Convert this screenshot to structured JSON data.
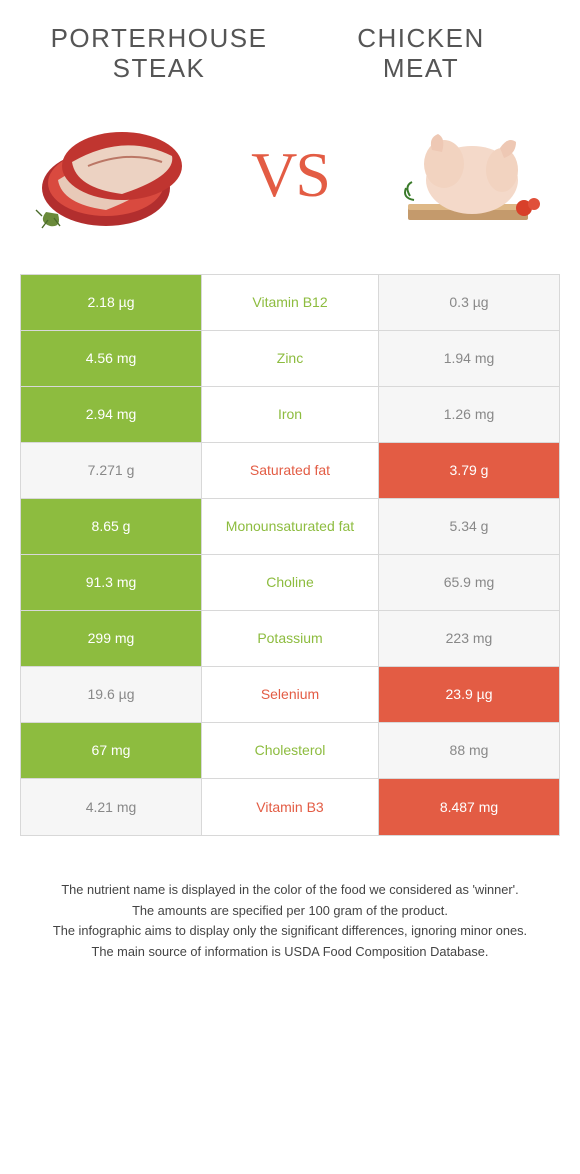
{
  "header": {
    "left_title_line1": "PORTERHOUSE",
    "left_title_line2": "STEAK",
    "right_title_line1": "CHICKEN",
    "right_title_line2": "MEAT",
    "vs": "VS"
  },
  "colors": {
    "left_winner": "#8dbc3f",
    "right_winner": "#e35c44",
    "loser_cell": "#f6f6f6",
    "loser_text": "#888888",
    "winner_text": "#ffffff",
    "border": "#d8d8d8"
  },
  "table": {
    "rows": [
      {
        "nutrient": "Vitamin B12",
        "left": "2.18 µg",
        "right": "0.3 µg",
        "winner": "left"
      },
      {
        "nutrient": "Zinc",
        "left": "4.56 mg",
        "right": "1.94 mg",
        "winner": "left"
      },
      {
        "nutrient": "Iron",
        "left": "2.94 mg",
        "right": "1.26 mg",
        "winner": "left"
      },
      {
        "nutrient": "Saturated fat",
        "left": "7.271 g",
        "right": "3.79 g",
        "winner": "right"
      },
      {
        "nutrient": "Monounsaturated fat",
        "left": "8.65 g",
        "right": "5.34 g",
        "winner": "left"
      },
      {
        "nutrient": "Choline",
        "left": "91.3 mg",
        "right": "65.9 mg",
        "winner": "left"
      },
      {
        "nutrient": "Potassium",
        "left": "299 mg",
        "right": "223 mg",
        "winner": "left"
      },
      {
        "nutrient": "Selenium",
        "left": "19.6 µg",
        "right": "23.9 µg",
        "winner": "right"
      },
      {
        "nutrient": "Cholesterol",
        "left": "67 mg",
        "right": "88 mg",
        "winner": "left"
      },
      {
        "nutrient": "Vitamin B3",
        "left": "4.21 mg",
        "right": "8.487 mg",
        "winner": "right"
      }
    ]
  },
  "notes": {
    "l1": "The nutrient name is displayed in the color of the food we considered as 'winner'.",
    "l2": "The amounts are specified per 100 gram of the product.",
    "l3": "The infographic aims to display only the significant differences, ignoring minor ones.",
    "l4": "The main source of information is USDA Food Composition Database."
  }
}
